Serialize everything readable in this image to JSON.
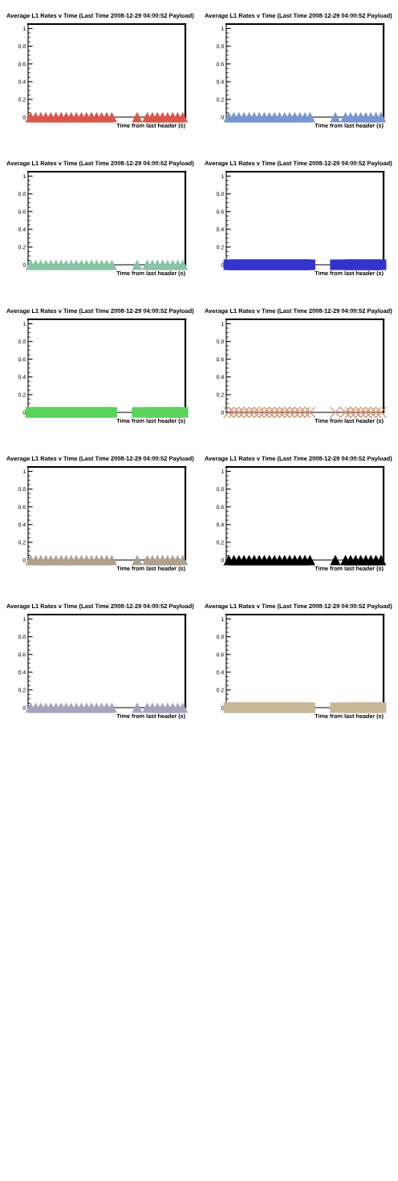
{
  "chart_data": [
    {
      "type": "scatter",
      "title": "Average L1 Rates v Time (Last Time 2008-12-29 04:00:52 Payload)",
      "xlabel": "Time from last header (s)",
      "categories": [
        null,
        null,
        null,
        null,
        null,
        null,
        null,
        null,
        null,
        null,
        null,
        null,
        null,
        null,
        null,
        null,
        null,
        null,
        null,
        null,
        null,
        null,
        null,
        null,
        null,
        null,
        null,
        null,
        null,
        null,
        null
      ],
      "series": [
        {
          "color": "#d9574a",
          "values": [
            0,
            0,
            0,
            0,
            0,
            0,
            0,
            0,
            0,
            0,
            0,
            0,
            0,
            0,
            0,
            0,
            0,
            null,
            null,
            null,
            null,
            0,
            null,
            0,
            0,
            0,
            0,
            0,
            0,
            0,
            0
          ]
        }
      ],
      "marker": "triangle",
      "ylim": [
        0,
        1.05
      ],
      "yticks": [
        0,
        0.2,
        0.4,
        0.6,
        0.8,
        1
      ],
      "tick_labels": "y",
      "grid": false,
      "legend": false
    },
    {
      "type": "scatter",
      "title": "Average L1 Rates v Time (Last Time 2008-12-29 04:00:52 Payload)",
      "xlabel": "Time from last header (s)",
      "categories": [
        null,
        null,
        null,
        null,
        null,
        null,
        null,
        null,
        null,
        null,
        null,
        null,
        null,
        null,
        null,
        null,
        null,
        null,
        null,
        null,
        null,
        null,
        null,
        null,
        null,
        null,
        null,
        null,
        null,
        null,
        null
      ],
      "series": [
        {
          "color": "#7896d2",
          "values": [
            0,
            0,
            0,
            0,
            0,
            0,
            0,
            0,
            0,
            0,
            0,
            0,
            0,
            0,
            0,
            0,
            0,
            null,
            null,
            null,
            null,
            0,
            null,
            0,
            0,
            0,
            0,
            0,
            0,
            0,
            0
          ]
        }
      ],
      "marker": "triangle",
      "ylim": [
        0,
        1.05
      ],
      "yticks": [
        0,
        0.2,
        0.4,
        0.6,
        0.8,
        1
      ],
      "tick_labels": "y",
      "grid": false,
      "legend": false
    },
    {
      "type": "scatter",
      "title": "Average L1 Rates v Time (Last Time 2008-12-29 04:00:52 Payload)",
      "xlabel": "Time from last header (s)",
      "categories": [
        null,
        null,
        null,
        null,
        null,
        null,
        null,
        null,
        null,
        null,
        null,
        null,
        null,
        null,
        null,
        null,
        null,
        null,
        null,
        null,
        null,
        null,
        null,
        null,
        null,
        null,
        null,
        null,
        null,
        null,
        null
      ],
      "series": [
        {
          "color": "#88c4a6",
          "values": [
            0,
            0,
            0,
            0,
            0,
            0,
            0,
            0,
            0,
            0,
            0,
            0,
            0,
            0,
            0,
            0,
            0,
            null,
            null,
            null,
            null,
            0,
            null,
            0,
            0,
            0,
            0,
            0,
            0,
            0,
            0
          ]
        }
      ],
      "marker": "triangle",
      "ylim": [
        0,
        1.05
      ],
      "yticks": [
        0,
        0.2,
        0.4,
        0.6,
        0.8,
        1
      ],
      "tick_labels": "y",
      "grid": false,
      "legend": false
    },
    {
      "type": "scatter",
      "title": "Average L1 Rates v Time (Last Time 2008-12-29 04:00:52 Payload)",
      "xlabel": "Time from last header (s)",
      "categories": [
        null,
        null,
        null,
        null,
        null,
        null,
        null,
        null,
        null,
        null,
        null,
        null,
        null,
        null,
        null,
        null,
        null,
        null,
        null,
        null,
        null,
        null,
        null,
        null,
        null,
        null,
        null,
        null,
        null,
        null,
        null
      ],
      "series": [
        {
          "color": "#3333cc",
          "values": [
            0,
            0,
            0,
            0,
            0,
            0,
            0,
            0,
            0,
            0,
            0,
            0,
            0,
            0,
            0,
            0,
            0,
            null,
            null,
            null,
            null,
            0,
            null,
            0,
            0,
            0,
            0,
            0,
            0,
            0,
            0
          ]
        }
      ],
      "marker": "square",
      "ylim": [
        0,
        1.05
      ],
      "yticks": [
        0,
        0.2,
        0.4,
        0.6,
        0.8,
        1
      ],
      "tick_labels": "y",
      "grid": false,
      "legend": false
    },
    {
      "type": "scatter",
      "title": "Average L1 Rates v Time (Last Time 2008-12-29 04:00:52 Payload)",
      "xlabel": "Time from last header (s)",
      "categories": [
        null,
        null,
        null,
        null,
        null,
        null,
        null,
        null,
        null,
        null,
        null,
        null,
        null,
        null,
        null,
        null,
        null,
        null,
        null,
        null,
        null,
        null,
        null,
        null,
        null,
        null,
        null,
        null,
        null,
        null,
        null
      ],
      "series": [
        {
          "color": "#5ad35a",
          "values": [
            0,
            0,
            0,
            0,
            0,
            0,
            0,
            0,
            0,
            0,
            0,
            0,
            0,
            0,
            0,
            0,
            0,
            null,
            null,
            null,
            null,
            0,
            null,
            0,
            0,
            0,
            0,
            0,
            0,
            0,
            0
          ]
        }
      ],
      "marker": "square",
      "ylim": [
        0,
        1.05
      ],
      "yticks": [
        0,
        0.2,
        0.4,
        0.6,
        0.8,
        1
      ],
      "tick_labels": "y",
      "grid": false,
      "legend": false
    },
    {
      "type": "scatter",
      "title": "Average L1 Rates v Time (Last Time 2008-12-29 04:00:52 Payload)",
      "xlabel": "Time from last header (s)",
      "categories": [
        null,
        null,
        null,
        null,
        null,
        null,
        null,
        null,
        null,
        null,
        null,
        null,
        null,
        null,
        null,
        null,
        null,
        null,
        null,
        null,
        null,
        null,
        null,
        null,
        null,
        null,
        null,
        null,
        null,
        null,
        null
      ],
      "series": [
        {
          "color": "#d8926e",
          "values": [
            0,
            0,
            0,
            0,
            0,
            0,
            0,
            0,
            0,
            0,
            0,
            0,
            0,
            0,
            0,
            0,
            0,
            null,
            null,
            null,
            null,
            0,
            null,
            0,
            0,
            0,
            0,
            0,
            0,
            0,
            0
          ]
        }
      ],
      "marker": "cross",
      "ylim": [
        0,
        1.05
      ],
      "yticks": [
        0,
        0.2,
        0.4,
        0.6,
        0.8,
        1
      ],
      "tick_labels": "y",
      "grid": false,
      "legend": false
    },
    {
      "type": "scatter",
      "title": "Average L1 Rates v Time (Last Time 2008-12-29 04:00:52 Payload)",
      "xlabel": "Time from last header (s)",
      "categories": [
        null,
        null,
        null,
        null,
        null,
        null,
        null,
        null,
        null,
        null,
        null,
        null,
        null,
        null,
        null,
        null,
        null,
        null,
        null,
        null,
        null,
        null,
        null,
        null,
        null,
        null,
        null,
        null,
        null,
        null,
        null
      ],
      "series": [
        {
          "color": "#b0a090",
          "values": [
            0,
            0,
            0,
            0,
            0,
            0,
            0,
            0,
            0,
            0,
            0,
            0,
            0,
            0,
            0,
            0,
            0,
            null,
            null,
            null,
            null,
            0,
            null,
            0,
            0,
            0,
            0,
            0,
            0,
            0,
            0
          ]
        }
      ],
      "marker": "triangle",
      "ylim": [
        0,
        1.05
      ],
      "yticks": [
        0,
        0.2,
        0.4,
        0.6,
        0.8,
        1
      ],
      "tick_labels": "y",
      "grid": false,
      "legend": false
    },
    {
      "type": "scatter",
      "title": "Average L1 Rates v Time (Last Time 2008-12-29 04:00:52 Payload)",
      "xlabel": "Time from last header (s)",
      "categories": [
        null,
        null,
        null,
        null,
        null,
        null,
        null,
        null,
        null,
        null,
        null,
        null,
        null,
        null,
        null,
        null,
        null,
        null,
        null,
        null,
        null,
        null,
        null,
        null,
        null,
        null,
        null,
        null,
        null,
        null,
        null
      ],
      "series": [
        {
          "color": "#000000",
          "values": [
            0,
            0,
            0,
            0,
            0,
            0,
            0,
            0,
            0,
            0,
            0,
            0,
            0,
            0,
            0,
            0,
            0,
            null,
            null,
            null,
            null,
            0,
            null,
            0,
            0,
            0,
            0,
            0,
            0,
            0,
            0
          ]
        }
      ],
      "marker": "triangle",
      "ylim": [
        0,
        1.05
      ],
      "yticks": [
        0,
        0.2,
        0.4,
        0.6,
        0.8,
        1
      ],
      "tick_labels": "y",
      "grid": false,
      "legend": false
    },
    {
      "type": "scatter",
      "title": "Average L1 Rates v Time (Last Time 2008-12-29 04:00:52 Payload)",
      "xlabel": "Time from last header (s)",
      "categories": [
        null,
        null,
        null,
        null,
        null,
        null,
        null,
        null,
        null,
        null,
        null,
        null,
        null,
        null,
        null,
        null,
        null,
        null,
        null,
        null,
        null,
        null,
        null,
        null,
        null,
        null,
        null,
        null,
        null,
        null,
        null
      ],
      "series": [
        {
          "color": "#a8a4c0",
          "values": [
            0,
            0,
            0,
            0,
            0,
            0,
            0,
            0,
            0,
            0,
            0,
            0,
            0,
            0,
            0,
            0,
            0,
            null,
            null,
            null,
            null,
            0,
            null,
            0,
            0,
            0,
            0,
            0,
            0,
            0,
            0
          ]
        }
      ],
      "marker": "triangle",
      "ylim": [
        0,
        1.05
      ],
      "yticks": [
        0,
        0.2,
        0.4,
        0.6,
        0.8,
        1
      ],
      "tick_labels": "y",
      "grid": false,
      "legend": false
    },
    {
      "type": "scatter",
      "title": "Average L1 Rates v Time (Last Time 2008-12-29 04:00:52 Payload)",
      "xlabel": "Time from last header (s)",
      "categories": [
        null,
        null,
        null,
        null,
        null,
        null,
        null,
        null,
        null,
        null,
        null,
        null,
        null,
        null,
        null,
        null,
        null,
        null,
        null,
        null,
        null,
        null,
        null,
        null,
        null,
        null,
        null,
        null,
        null,
        null,
        null
      ],
      "series": [
        {
          "color": "#c8b898",
          "values": [
            0,
            0,
            0,
            0,
            0,
            0,
            0,
            0,
            0,
            0,
            0,
            0,
            0,
            0,
            0,
            0,
            0,
            null,
            null,
            null,
            null,
            0,
            null,
            0,
            0,
            0,
            0,
            0,
            0,
            0,
            0
          ]
        }
      ],
      "marker": "square",
      "ylim": [
        0,
        1.05
      ],
      "yticks": [
        0,
        0.2,
        0.4,
        0.6,
        0.8,
        1
      ],
      "tick_labels": "y",
      "grid": false,
      "legend": false
    }
  ]
}
